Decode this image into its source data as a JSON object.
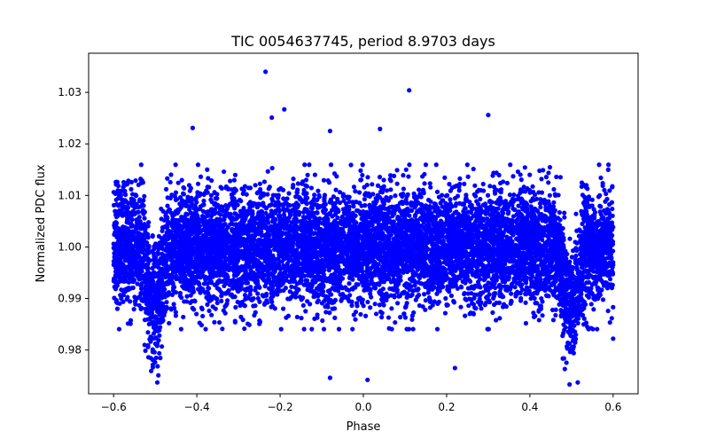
{
  "chart_data": {
    "type": "scatter",
    "title": "TIC 0054637745, period 8.9703 days",
    "xlabel": "Phase",
    "ylabel": "Normalized PDC flux",
    "xlim": [
      -0.66,
      0.66
    ],
    "ylim": [
      0.9715,
      1.0376
    ],
    "xticks": [
      -0.6,
      -0.4,
      -0.2,
      0.0,
      0.2,
      0.4,
      0.6
    ],
    "xtick_labels": [
      "−0.6",
      "−0.4",
      "−0.2",
      "0.0",
      "0.2",
      "0.4",
      "0.6"
    ],
    "yticks": [
      0.98,
      0.99,
      1.0,
      1.01,
      1.02,
      1.03
    ],
    "ytick_labels": [
      "0.98",
      "0.99",
      "1.00",
      "1.01",
      "1.02",
      "1.03"
    ],
    "series": [
      {
        "name": "PDC flux",
        "color": "#0000ff",
        "x_range": [
          -0.6,
          0.6
        ],
        "baseline": 1.0,
        "scatter_sigma": 0.0055,
        "eclipses": [
          {
            "phase_center": -0.5,
            "phase_halfwidth": 0.03,
            "depth": 0.011
          },
          {
            "phase_center": 0.5,
            "phase_halfwidth": 0.03,
            "depth": 0.011
          }
        ],
        "notable_points": [
          {
            "x": -0.235,
            "y": 1.034
          },
          {
            "x": 0.11,
            "y": 1.0304
          },
          {
            "x": 0.3,
            "y": 1.0256
          },
          {
            "x": -0.19,
            "y": 1.0267
          },
          {
            "x": -0.22,
            "y": 1.0251
          },
          {
            "x": -0.41,
            "y": 1.0231
          },
          {
            "x": -0.08,
            "y": 1.0225
          },
          {
            "x": 0.04,
            "y": 1.0229
          },
          {
            "x": -0.08,
            "y": 0.9746
          },
          {
            "x": 0.01,
            "y": 0.9742
          },
          {
            "x": -0.495,
            "y": 0.9737
          },
          {
            "x": 0.515,
            "y": 0.9737
          },
          {
            "x": 0.22,
            "y": 0.9765
          },
          {
            "x": 0.6,
            "y": 0.9822
          }
        ]
      }
    ]
  }
}
